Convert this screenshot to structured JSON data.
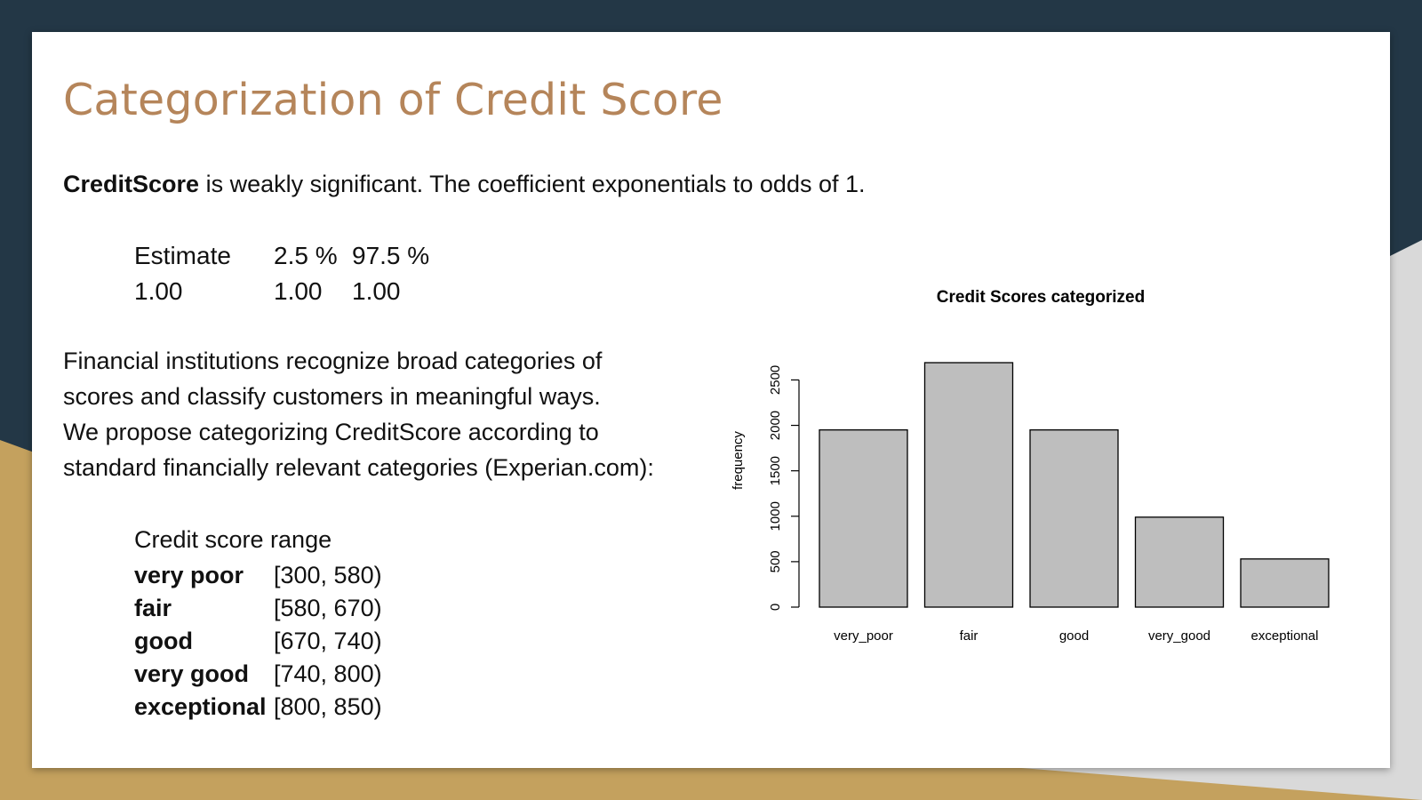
{
  "slide": {
    "title": "Categorization of Credit Score",
    "intro_bold": "CreditScore",
    "intro_rest": " is weakly significant. The coefficient exponentials to odds of 1.",
    "coef_table": {
      "headers": [
        "Estimate",
        "2.5 %",
        "97.5 %"
      ],
      "values": [
        "1.00",
        "1.00",
        "1.00"
      ]
    },
    "paragraph_lines": [
      "Financial institutions recognize broad categories of",
      "scores and classify customers in meaningful ways.",
      "We propose categorizing CreditScore according to",
      "standard financially relevant categories (Experian.com):"
    ],
    "ranges_header": "Credit score range",
    "ranges": [
      {
        "label": "very poor",
        "range": "[300, 580)"
      },
      {
        "label": "fair",
        "range": "[580, 670)"
      },
      {
        "label": "good",
        "range": "[670, 740)"
      },
      {
        "label": "very good",
        "range": "[740, 800)"
      },
      {
        "label": "exceptional",
        "range": "[800, 850)"
      }
    ]
  },
  "colors": {
    "background_dark": "#233746",
    "accent_gold": "#c4a15e",
    "title": "#b5855a",
    "bar_fill": "#bebebe"
  },
  "chart_data": {
    "type": "bar",
    "title": "Credit Scores categorized",
    "xlabel": "",
    "ylabel": "frequency",
    "categories": [
      "very_poor",
      "fair",
      "good",
      "very_good",
      "exceptional"
    ],
    "values": [
      1950,
      2690,
      1950,
      990,
      530
    ],
    "ylim": [
      0,
      2690
    ],
    "yticks": [
      0,
      500,
      1000,
      1500,
      2000,
      2500
    ],
    "grid": false
  }
}
